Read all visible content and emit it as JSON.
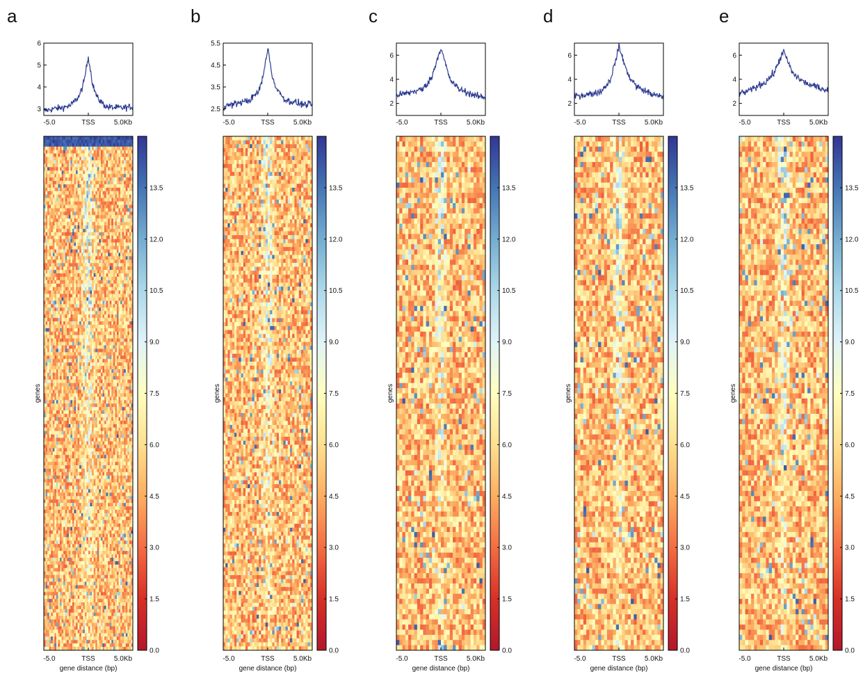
{
  "figure": {
    "colorbar": {
      "ticks": [
        "0.0",
        "1.5",
        "3.0",
        "4.5",
        "6.0",
        "7.5",
        "9.0",
        "10.5",
        "12.0",
        "13.5"
      ],
      "range": [
        0,
        15
      ],
      "colormap": [
        "#b2182b",
        "#d73027",
        "#f46d43",
        "#fdae61",
        "#fee090",
        "#ffffbf",
        "#e0f3f8",
        "#abd9e9",
        "#74add1",
        "#4575b4",
        "#313695"
      ]
    },
    "line_color": "#2b3a8f"
  },
  "chart_data": [
    {
      "panel": "a",
      "type": "line",
      "profile": {
        "xticks": [
          "-5.0",
          "TSS",
          "5.0Kb"
        ],
        "yticks": [
          "3",
          "4",
          "5",
          "6"
        ],
        "ylim": [
          2.7,
          6.0
        ],
        "x_kb": [
          -5,
          -4,
          -3,
          -2,
          -1,
          -0.5,
          0,
          0.5,
          1,
          2,
          3,
          4,
          5
        ],
        "y": [
          2.9,
          3.0,
          3.05,
          3.15,
          3.6,
          4.2,
          5.4,
          4.1,
          3.5,
          3.1,
          3.05,
          3.05,
          3.1
        ]
      },
      "heatmap": {
        "type": "heatmap",
        "xticks": [
          "-5.0",
          "TSS",
          "5.0Kb"
        ],
        "xlabel": "gene distance (bp)",
        "ylabel": "genes"
      }
    },
    {
      "panel": "b",
      "type": "line",
      "profile": {
        "xticks": [
          "-5.0",
          "TSS",
          "5.0Kb"
        ],
        "yticks": [
          "2.5",
          "3.5",
          "4.5",
          "5.5"
        ],
        "ylim": [
          2.2,
          5.5
        ],
        "x_kb": [
          -5,
          -4,
          -3,
          -2,
          -1,
          -0.5,
          0,
          0.5,
          1,
          2,
          3,
          4,
          5
        ],
        "y": [
          2.6,
          2.7,
          2.8,
          2.9,
          3.3,
          4.0,
          5.3,
          4.0,
          3.4,
          2.9,
          2.8,
          2.7,
          2.7
        ]
      },
      "heatmap": {
        "type": "heatmap",
        "xticks": [
          "-5.0",
          "TSS",
          "5.0Kb"
        ],
        "xlabel": "gene distance (bp)",
        "ylabel": "genes"
      }
    },
    {
      "panel": "c",
      "type": "line",
      "profile": {
        "xticks": [
          "-5.0",
          "TSS",
          "5.0Kb"
        ],
        "yticks": [
          "2",
          "4",
          "6"
        ],
        "ylim": [
          1,
          7
        ],
        "x_kb": [
          -5,
          -4,
          -3,
          -2,
          -1,
          -0.5,
          0,
          0.5,
          1,
          2,
          3,
          4,
          5
        ],
        "y": [
          2.7,
          2.8,
          3.0,
          3.2,
          4.2,
          5.5,
          6.6,
          5.3,
          4.0,
          3.2,
          2.9,
          2.6,
          2.5
        ]
      },
      "heatmap": {
        "type": "heatmap",
        "xticks": [
          "-5.0",
          "TSS",
          "5.0Kb"
        ],
        "xlabel": "gene distance (bp)",
        "ylabel": "genes"
      }
    },
    {
      "panel": "d",
      "type": "line",
      "profile": {
        "xticks": [
          "-5.0",
          "TSS",
          "5.0Kb"
        ],
        "yticks": [
          "2",
          "4",
          "6"
        ],
        "ylim": [
          1,
          7
        ],
        "x_kb": [
          -5,
          -4,
          -3,
          -2,
          -1,
          -0.5,
          0,
          0.5,
          1,
          2,
          3,
          4,
          5
        ],
        "y": [
          2.6,
          2.7,
          2.8,
          3.0,
          3.9,
          5.2,
          6.7,
          5.6,
          4.4,
          3.4,
          3.0,
          2.7,
          2.5
        ]
      },
      "heatmap": {
        "type": "heatmap",
        "xticks": [
          "-5.0",
          "TSS",
          "5.0Kb"
        ],
        "xlabel": "gene distance (bp)",
        "ylabel": "genes"
      }
    },
    {
      "panel": "e",
      "type": "line",
      "profile": {
        "xticks": [
          "-5.0",
          "TSS",
          "5.0Kb"
        ],
        "yticks": [
          "2",
          "4",
          "6"
        ],
        "ylim": [
          1,
          7
        ],
        "x_kb": [
          -5,
          -4,
          -3,
          -2,
          -1,
          -0.5,
          0,
          0.5,
          1,
          2,
          3,
          4,
          5
        ],
        "y": [
          2.8,
          3.0,
          3.4,
          3.8,
          4.6,
          5.6,
          6.3,
          5.4,
          4.5,
          3.9,
          3.5,
          3.3,
          3.1
        ]
      },
      "heatmap": {
        "type": "heatmap",
        "xticks": [
          "-5.0",
          "TSS",
          "5.0Kb"
        ],
        "xlabel": "gene distance (bp)",
        "ylabel": "genes"
      }
    }
  ]
}
